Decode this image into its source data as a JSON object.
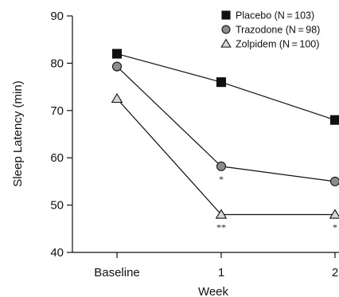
{
  "chart_data": {
    "type": "line",
    "title": "",
    "xlabel": "Week",
    "ylabel": "Sleep Latency (min)",
    "categories": [
      "Baseline",
      "1",
      "2"
    ],
    "ylim": [
      40,
      90
    ],
    "yticks": [
      40,
      50,
      60,
      70,
      80,
      90
    ],
    "grid": false,
    "legend_position": "top-right",
    "series": [
      {
        "name": "Placebo (N = 103)",
        "marker": "square",
        "fill": "#111111",
        "values": [
          82,
          76,
          68
        ]
      },
      {
        "name": "Trazodone (N = 98)",
        "marker": "circle",
        "fill": "#8c8c8c",
        "values": [
          79.3,
          58.2,
          55
        ]
      },
      {
        "name": "Zolpidem (N = 100)",
        "marker": "triangle",
        "fill": "#d6d6d6",
        "values": [
          72.5,
          48,
          48
        ]
      }
    ],
    "annotations": [
      {
        "text": "*",
        "category": "1",
        "series": "Trazodone (N = 98)"
      },
      {
        "text": "**",
        "category": "1",
        "series": "Zolpidem (N = 100)"
      },
      {
        "text": "*",
        "category": "2",
        "series": "Zolpidem (N = 100)"
      }
    ]
  }
}
